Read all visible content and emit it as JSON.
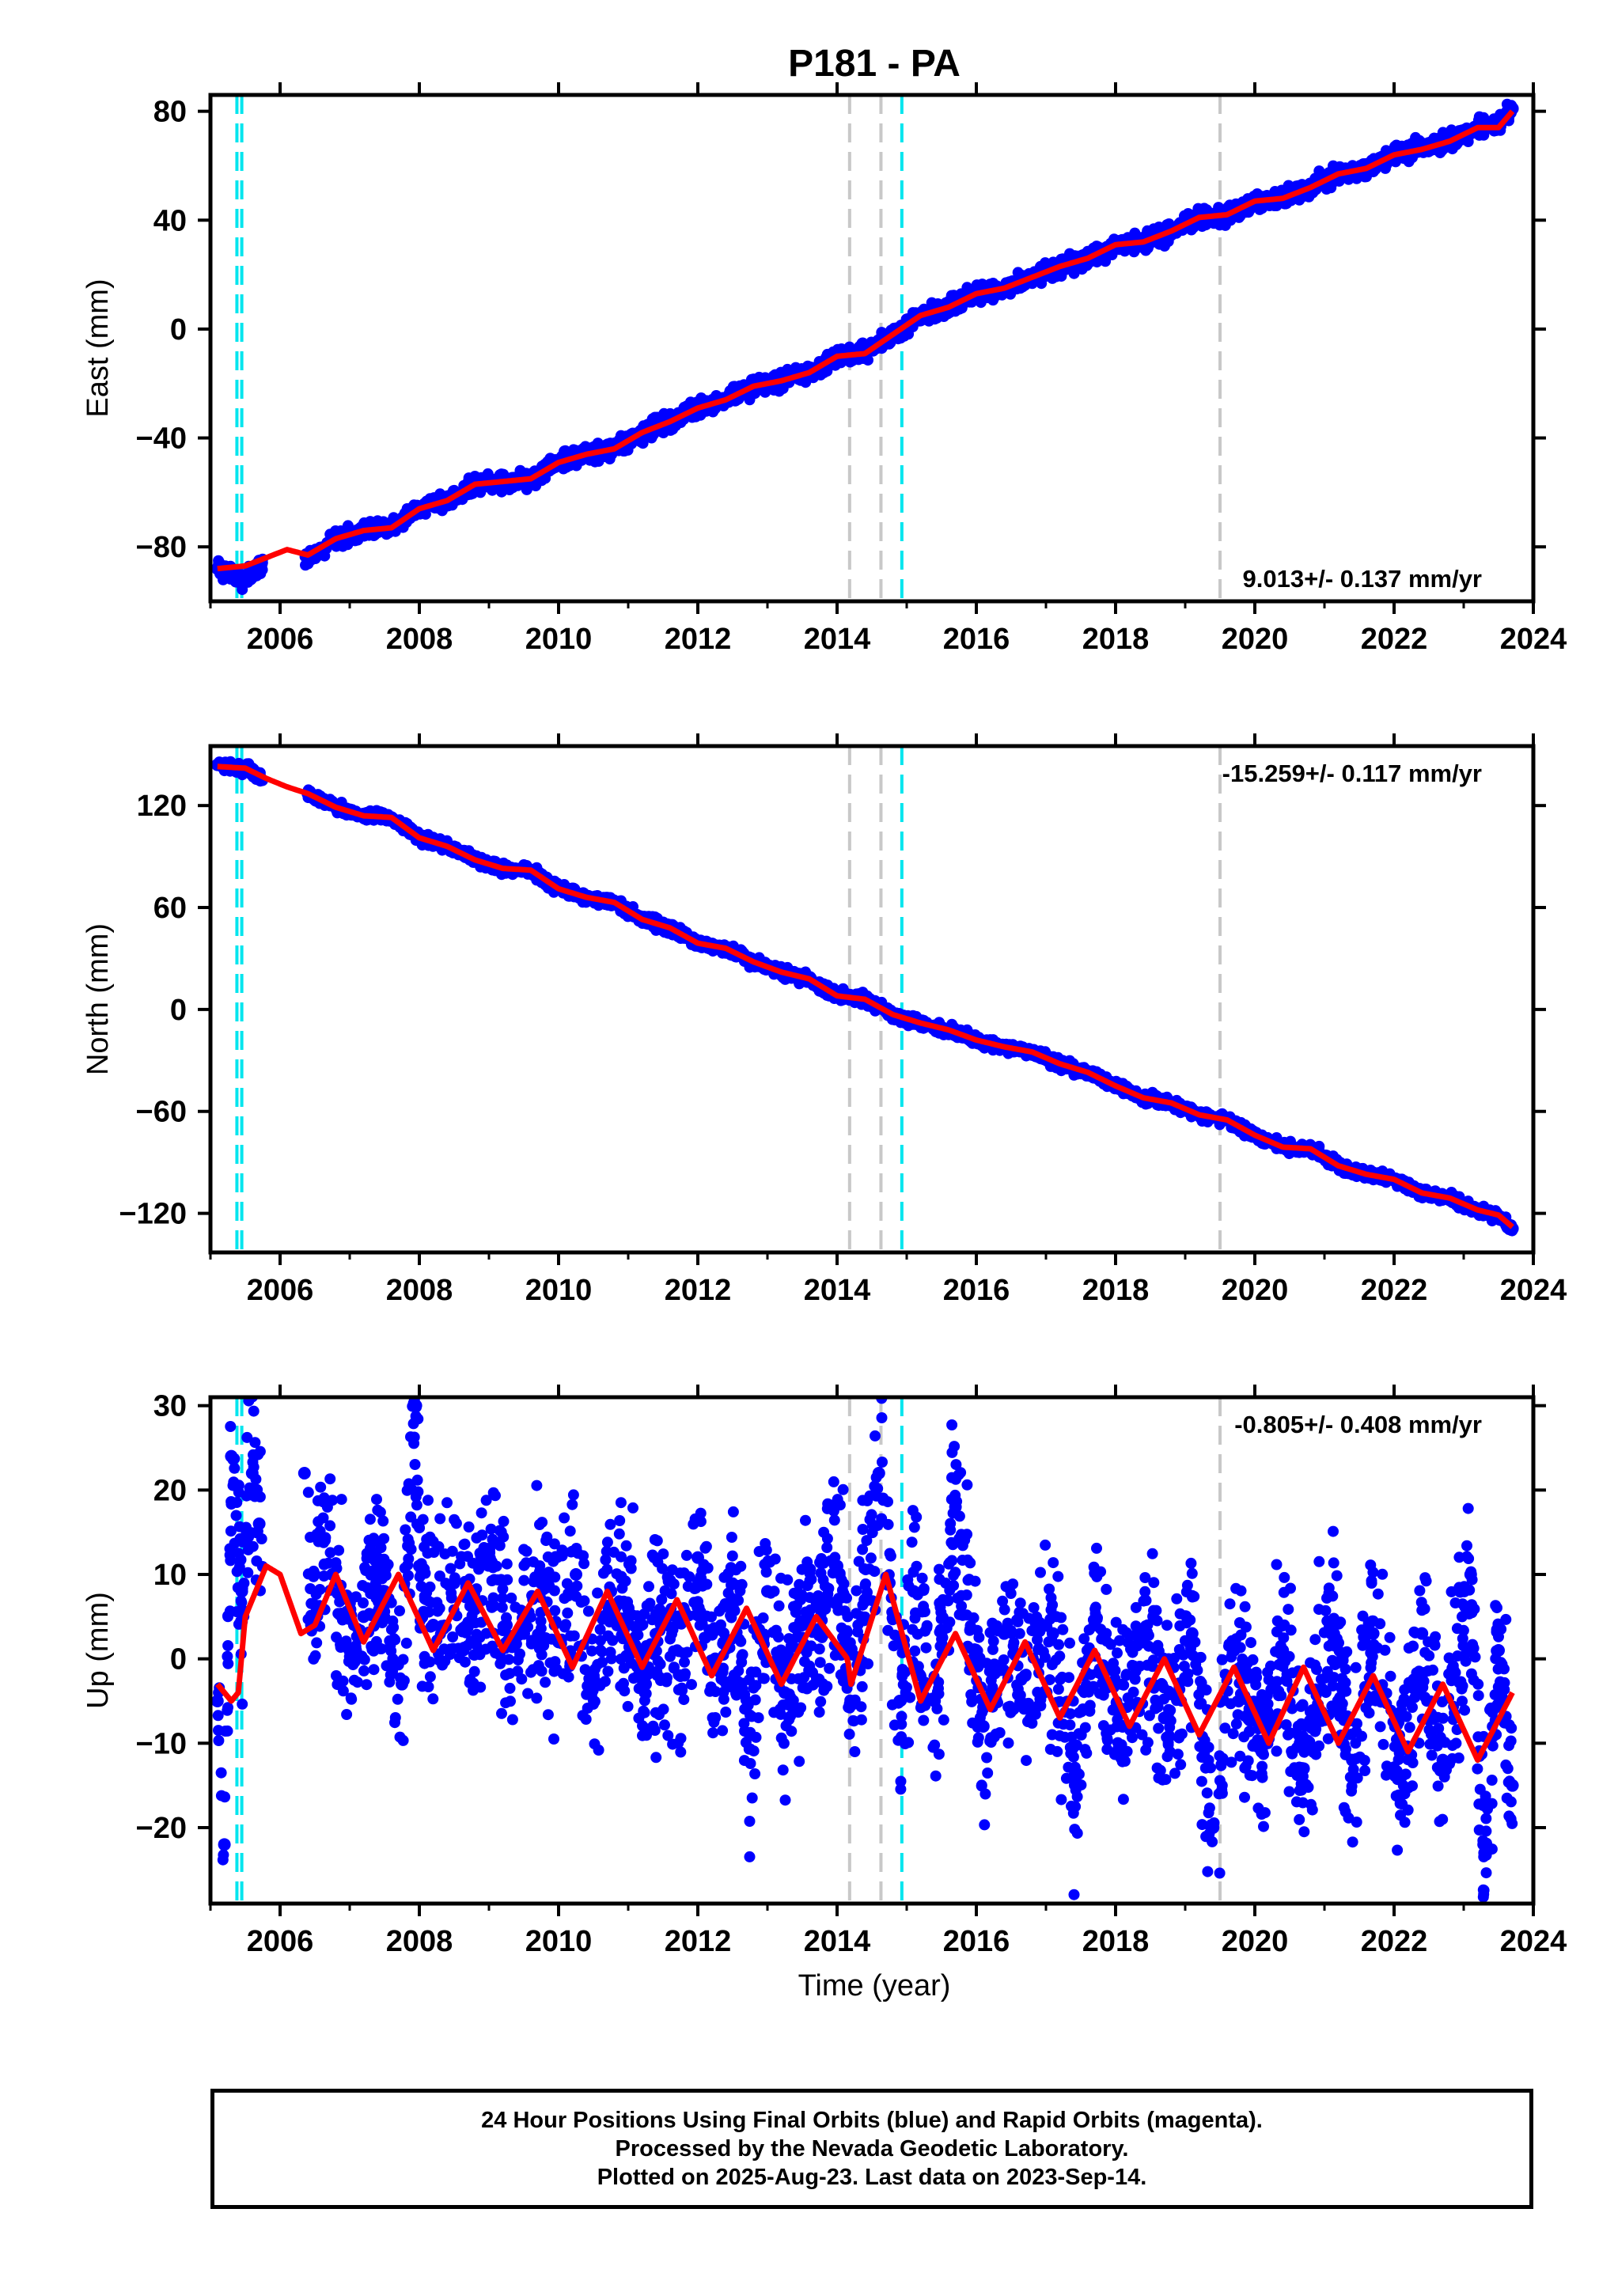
{
  "figure": {
    "title": "P181 - PA",
    "xlabel": "Time (year)"
  },
  "chart_data": [
    {
      "type": "scatter",
      "component": "east",
      "ylabel": "East (mm)",
      "xlim": [
        2005.0,
        2024.0
      ],
      "ylim": [
        -100,
        86
      ],
      "xticks": [
        2006,
        2008,
        2010,
        2012,
        2014,
        2016,
        2018,
        2020,
        2022,
        2024
      ],
      "yticks": [
        -80,
        -40,
        0,
        40,
        80
      ],
      "rate_label": "9.013+/- 0.137 mm/yr",
      "rate_position": "bottom-right",
      "series": [
        {
          "name": "Final Orbits (blue)",
          "role": "daily positions",
          "color": "#0000ff",
          "x": [
            2005.1,
            2005.3,
            2005.5,
            2005.7,
            2006.4,
            2006.8,
            2007.2,
            2007.6,
            2008.0,
            2008.4,
            2008.8,
            2009.2,
            2009.6,
            2010.0,
            2010.4,
            2010.8,
            2011.2,
            2011.6,
            2012.0,
            2012.4,
            2012.8,
            2013.2,
            2013.6,
            2014.0,
            2014.4,
            2014.8,
            2015.2,
            2015.6,
            2016.0,
            2016.4,
            2016.8,
            2017.2,
            2017.6,
            2018.0,
            2018.4,
            2018.8,
            2019.2,
            2019.6,
            2020.0,
            2020.4,
            2020.8,
            2021.2,
            2021.6,
            2022.0,
            2022.4,
            2022.8,
            2023.2,
            2023.5,
            2023.7
          ],
          "y": [
            -88,
            -90,
            -92,
            -88,
            -84,
            -77,
            -74,
            -73,
            -66,
            -63,
            -57,
            -56,
            -55,
            -49,
            -46,
            -44,
            -38,
            -34,
            -29,
            -26,
            -21,
            -19,
            -16,
            -10,
            -9,
            -2,
            5,
            8,
            13,
            15,
            19,
            23,
            26,
            31,
            32,
            36,
            41,
            42,
            47,
            48,
            52,
            57,
            59,
            64,
            67,
            69,
            74,
            75,
            81
          ]
        },
        {
          "name": "model",
          "role": "fitted model",
          "color": "#ff0000",
          "x": [
            2005.1,
            2005.5,
            2005.8,
            2006.1,
            2006.4,
            2006.8,
            2007.2,
            2007.6,
            2008.0,
            2008.4,
            2008.8,
            2009.2,
            2009.6,
            2010.0,
            2010.4,
            2010.8,
            2011.2,
            2011.6,
            2012.0,
            2012.4,
            2012.8,
            2013.2,
            2013.6,
            2014.0,
            2014.4,
            2014.8,
            2015.2,
            2015.6,
            2016.0,
            2016.4,
            2016.8,
            2017.2,
            2017.6,
            2018.0,
            2018.4,
            2018.8,
            2019.2,
            2019.6,
            2020.0,
            2020.4,
            2020.8,
            2021.2,
            2021.6,
            2022.0,
            2022.4,
            2022.8,
            2023.2,
            2023.5,
            2023.7
          ],
          "y": [
            -88,
            -87,
            -84,
            -81,
            -83,
            -77,
            -74,
            -73,
            -66,
            -63,
            -57,
            -56,
            -55,
            -49,
            -46,
            -44,
            -38,
            -34,
            -29,
            -26,
            -21,
            -19,
            -16,
            -10,
            -9,
            -2,
            5,
            8,
            13,
            15,
            19,
            23,
            26,
            31,
            32,
            36,
            41,
            42,
            47,
            48,
            52,
            57,
            59,
            64,
            66,
            69,
            74,
            74,
            80
          ]
        }
      ]
    },
    {
      "type": "scatter",
      "component": "north",
      "ylabel": "North (mm)",
      "xlim": [
        2005.0,
        2024.0
      ],
      "ylim": [
        -143,
        155
      ],
      "xticks": [
        2006,
        2008,
        2010,
        2012,
        2014,
        2016,
        2018,
        2020,
        2022,
        2024
      ],
      "yticks": [
        -120,
        -60,
        0,
        60,
        120
      ],
      "rate_label": "-15.259+/- 0.117 mm/yr",
      "rate_position": "top-right",
      "series": [
        {
          "name": "Final Orbits (blue)",
          "role": "daily positions",
          "color": "#0000ff",
          "x": [
            2005.1,
            2005.3,
            2005.5,
            2005.7,
            2006.4,
            2006.8,
            2007.2,
            2007.6,
            2008.0,
            2008.4,
            2008.8,
            2009.2,
            2009.6,
            2010.0,
            2010.4,
            2010.8,
            2011.2,
            2011.6,
            2012.0,
            2012.4,
            2012.8,
            2013.2,
            2013.6,
            2014.0,
            2014.4,
            2014.8,
            2015.2,
            2015.6,
            2016.0,
            2016.4,
            2016.8,
            2017.2,
            2017.6,
            2018.0,
            2018.4,
            2018.8,
            2019.2,
            2019.6,
            2020.0,
            2020.4,
            2020.8,
            2021.2,
            2021.6,
            2022.0,
            2022.4,
            2022.8,
            2023.2,
            2023.5,
            2023.7
          ],
          "y": [
            144,
            143,
            142,
            137,
            127,
            119,
            114,
            113,
            101,
            96,
            88,
            83,
            82,
            71,
            66,
            63,
            53,
            48,
            39,
            36,
            28,
            22,
            18,
            8,
            6,
            -3,
            -8,
            -12,
            -18,
            -22,
            -25,
            -32,
            -37,
            -45,
            -52,
            -55,
            -62,
            -65,
            -74,
            -81,
            -82,
            -92,
            -97,
            -100,
            -108,
            -111,
            -118,
            -122,
            -129
          ]
        },
        {
          "name": "model",
          "role": "fitted model",
          "color": "#ff0000",
          "x": [
            2005.1,
            2005.5,
            2005.8,
            2006.1,
            2006.4,
            2006.8,
            2007.2,
            2007.6,
            2008.0,
            2008.4,
            2008.8,
            2009.2,
            2009.6,
            2010.0,
            2010.4,
            2010.8,
            2011.2,
            2011.6,
            2012.0,
            2012.4,
            2012.8,
            2013.2,
            2013.6,
            2014.0,
            2014.4,
            2014.8,
            2015.2,
            2015.6,
            2016.0,
            2016.4,
            2016.8,
            2017.2,
            2017.6,
            2018.0,
            2018.4,
            2018.8,
            2019.2,
            2019.6,
            2020.0,
            2020.4,
            2020.8,
            2021.2,
            2021.6,
            2022.0,
            2022.4,
            2022.8,
            2023.2,
            2023.5,
            2023.7
          ],
          "y": [
            143,
            142,
            136,
            131,
            127,
            119,
            114,
            113,
            101,
            96,
            88,
            83,
            82,
            71,
            66,
            63,
            53,
            48,
            39,
            36,
            28,
            22,
            18,
            8,
            6,
            -3,
            -8,
            -12,
            -18,
            -22,
            -25,
            -32,
            -37,
            -45,
            -52,
            -55,
            -62,
            -65,
            -74,
            -81,
            -82,
            -92,
            -97,
            -100,
            -108,
            -111,
            -118,
            -121,
            -128
          ]
        }
      ]
    },
    {
      "type": "scatter",
      "component": "up",
      "ylabel": "Up (mm)",
      "xlim": [
        2005.0,
        2024.0
      ],
      "ylim": [
        -29,
        31
      ],
      "xticks": [
        2006,
        2008,
        2010,
        2012,
        2014,
        2016,
        2018,
        2020,
        2022,
        2024
      ],
      "yticks": [
        -20,
        -10,
        0,
        10,
        20,
        30
      ],
      "rate_label": "-0.805+/- 0.408 mm/yr",
      "rate_position": "top-right",
      "series": [
        {
          "name": "Final Orbits (blue)",
          "role": "daily positions",
          "color": "#0000ff",
          "x": [
            2005.1,
            2005.2,
            2005.3,
            2005.45,
            2005.6,
            2005.7,
            2006.35,
            2006.45,
            2006.6,
            2006.75,
            2007.0,
            2007.2,
            2007.5,
            2007.75,
            2007.95,
            2008.0,
            2008.2,
            2008.5,
            2008.75,
            2009.0,
            2009.25,
            2009.5,
            2009.75,
            2010.0,
            2010.25,
            2010.5,
            2010.75,
            2011.0,
            2011.25,
            2011.5,
            2011.75,
            2012.0,
            2012.25,
            2012.5,
            2012.75,
            2013.0,
            2013.25,
            2013.5,
            2013.75,
            2014.0,
            2014.2,
            2014.4,
            2014.6,
            2014.75,
            2014.9,
            2015.1,
            2015.4,
            2015.7,
            2016.1,
            2016.4,
            2016.7,
            2017.1,
            2017.4,
            2017.7,
            2018.1,
            2018.4,
            2018.7,
            2019.1,
            2019.4,
            2019.7,
            2020.1,
            2020.4,
            2020.7,
            2021.1,
            2021.4,
            2021.7,
            2022.1,
            2022.4,
            2022.7,
            2023.1,
            2023.3,
            2023.5,
            2023.7
          ],
          "y": [
            -5,
            -22,
            24,
            8,
            22,
            16,
            22,
            4,
            14,
            10,
            1,
            5,
            8,
            -3,
            30,
            11,
            4,
            9,
            2,
            13,
            4,
            3,
            9,
            2,
            10,
            -2,
            8,
            6,
            -3,
            5,
            -2,
            12,
            0,
            6,
            -9,
            8,
            -4,
            4,
            6,
            11,
            -5,
            7,
            22,
            9,
            -5,
            8,
            -5,
            18,
            -8,
            3,
            -2,
            3,
            -14,
            4,
            -8,
            2,
            -7,
            3,
            -20,
            1,
            -11,
            1,
            -13,
            3,
            -12,
            3,
            -14,
            3,
            -12,
            10,
            -23,
            1,
            -15
          ]
        },
        {
          "name": "model",
          "role": "fitted model",
          "color": "#ff0000",
          "x": [
            2005.1,
            2005.3,
            2005.4,
            2005.5,
            2005.8,
            2006.0,
            2006.3,
            2006.5,
            2006.8,
            2007.2,
            2007.7,
            2008.2,
            2008.7,
            2009.2,
            2009.7,
            2010.2,
            2010.7,
            2011.2,
            2011.7,
            2012.2,
            2012.7,
            2013.2,
            2013.7,
            2014.15,
            2014.2,
            2014.7,
            2015.2,
            2015.7,
            2016.2,
            2016.7,
            2017.2,
            2017.7,
            2018.2,
            2018.7,
            2019.2,
            2019.7,
            2020.2,
            2020.7,
            2021.2,
            2021.7,
            2022.2,
            2022.7,
            2023.2,
            2023.7
          ],
          "y": [
            -3,
            -5,
            -4,
            5,
            11,
            10,
            3,
            4,
            10,
            2,
            10,
            1,
            9,
            1,
            8,
            -1,
            8,
            -1,
            7,
            -2,
            6,
            -3,
            5,
            0,
            -3,
            10,
            -5,
            3,
            -6,
            2,
            -7,
            1,
            -8,
            0,
            -9,
            -1,
            -10,
            -1,
            -10,
            -2,
            -11,
            -3,
            -12,
            -4
          ]
        }
      ]
    }
  ],
  "offsets": {
    "cyan_epochs": [
      2005.38,
      2005.45,
      2014.93
    ],
    "gray_epochs": [
      2014.18,
      2014.63,
      2019.5
    ],
    "cyan_color": "#00e5ee",
    "gray_color": "#c8c8c8"
  },
  "footer": {
    "line1": "24 Hour Positions Using Final Orbits (blue) and Rapid Orbits (magenta).",
    "line2": "Processed by the Nevada Geodetic Laboratory.",
    "line3": "Plotted on 2025-Aug-23. Last data on 2023-Sep-14."
  }
}
